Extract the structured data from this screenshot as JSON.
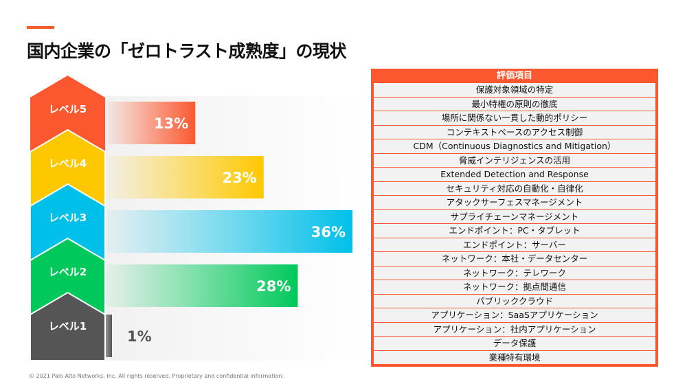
{
  "header": {
    "title": "国内企業の「ゼロトラスト成熟度」の現状"
  },
  "chart_data": {
    "type": "bar",
    "orientation": "horizontal",
    "title": "国内企業の「ゼロトラスト成熟度」の現状",
    "categories": [
      "レベル5",
      "レベル4",
      "レベル3",
      "レベル2",
      "レベル1"
    ],
    "values": [
      13,
      23,
      36,
      28,
      1
    ],
    "value_labels": [
      "13%",
      "23%",
      "36%",
      "28%",
      "1%"
    ],
    "unit": "%",
    "xlim": [
      0,
      36
    ],
    "colors": [
      "#fc5830",
      "#fec800",
      "#00bfe8",
      "#00c85a",
      "#555555"
    ],
    "xlabel": "",
    "ylabel": "",
    "grid": false
  },
  "table": {
    "header": "評価項目",
    "accent_color": "#fc5830",
    "rows": [
      "保護対象領域の特定",
      "最小特権の原則の徹底",
      "場所に関係ない一貫した動的ポリシー",
      "コンテキストベースのアクセス制御",
      "CDM（Continuous Diagnostics and Mitigation）",
      "脅威インテリジェンスの活用",
      "Extended Detection and Response",
      "セキュリティ対応の自動化・自律化",
      "アタックサーフェスマネージメント",
      "サプライチェーンマネージメント",
      "エンドポイント：PC・タブレット",
      "エンドポイント：サーバー",
      "ネットワーク：本社・データセンター",
      "ネットワーク：テレワーク",
      "ネットワーク：拠点間通信",
      "パブリッククラウド",
      "アプリケーション：SaaSアプリケーション",
      "アプリケーション：社内アプリケーション",
      "データ保護",
      "業種特有環境"
    ]
  },
  "footer": {
    "copyright": "© 2021 Palo Alto Networks, Inc. All rights reserved. Proprietary and confidential information."
  }
}
